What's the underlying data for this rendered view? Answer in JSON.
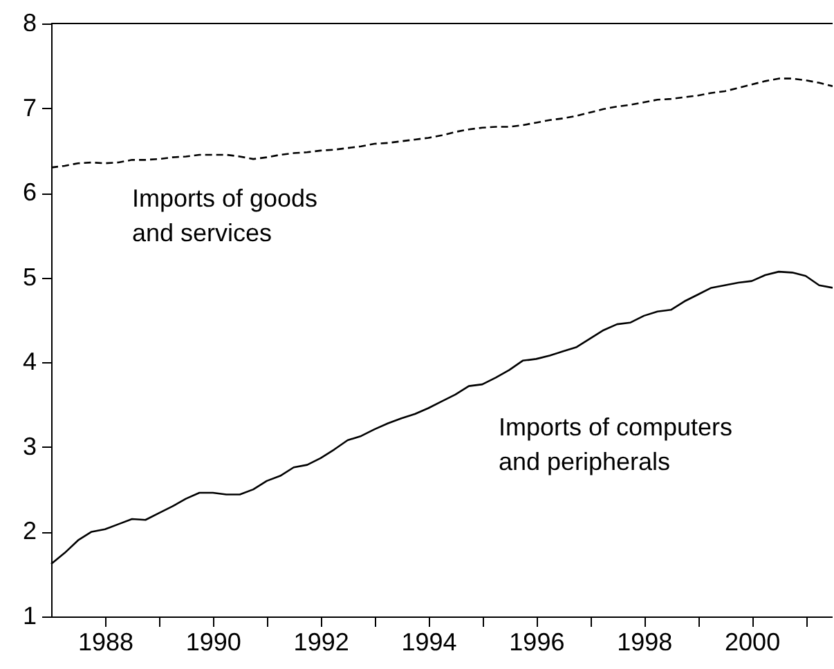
{
  "chart_data": {
    "type": "line",
    "x": [
      1987,
      1987.25,
      1987.5,
      1987.75,
      1988,
      1988.25,
      1988.5,
      1988.75,
      1989,
      1989.25,
      1989.5,
      1989.75,
      1990,
      1990.25,
      1990.5,
      1990.75,
      1991,
      1991.25,
      1991.5,
      1991.75,
      1992,
      1992.25,
      1992.5,
      1992.75,
      1993,
      1993.25,
      1993.5,
      1993.75,
      1994,
      1994.25,
      1994.5,
      1994.75,
      1995,
      1995.25,
      1995.5,
      1995.75,
      1996,
      1996.25,
      1996.5,
      1996.75,
      1997,
      1997.25,
      1997.5,
      1997.75,
      1998,
      1998.25,
      1998.5,
      1998.75,
      1999,
      1999.25,
      1999.5,
      1999.75,
      2000,
      2000.25,
      2000.5,
      2000.75,
      2001,
      2001.25,
      2001.5
    ],
    "series": [
      {
        "name": "Imports of goods and services",
        "color": "#000000",
        "line_style": "dashed",
        "values": [
          6.3,
          6.32,
          6.35,
          6.36,
          6.35,
          6.36,
          6.39,
          6.39,
          6.4,
          6.42,
          6.43,
          6.45,
          6.45,
          6.45,
          6.43,
          6.4,
          6.42,
          6.45,
          6.47,
          6.48,
          6.5,
          6.51,
          6.53,
          6.55,
          6.58,
          6.59,
          6.61,
          6.63,
          6.65,
          6.68,
          6.72,
          6.75,
          6.77,
          6.78,
          6.78,
          6.8,
          6.83,
          6.86,
          6.88,
          6.91,
          6.95,
          6.99,
          7.02,
          7.04,
          7.07,
          7.1,
          7.11,
          7.13,
          7.15,
          7.18,
          7.2,
          7.24,
          7.28,
          7.32,
          7.35,
          7.35,
          7.33,
          7.3,
          7.26
        ]
      },
      {
        "name": "Imports of computers and peripherals",
        "color": "#000000",
        "line_style": "solid",
        "values": [
          1.62,
          1.75,
          1.9,
          2.0,
          2.03,
          2.09,
          2.15,
          2.14,
          2.22,
          2.3,
          2.39,
          2.46,
          2.46,
          2.44,
          2.44,
          2.5,
          2.6,
          2.66,
          2.76,
          2.79,
          2.87,
          2.97,
          3.08,
          3.13,
          3.21,
          3.28,
          3.34,
          3.39,
          3.46,
          3.54,
          3.62,
          3.72,
          3.74,
          3.82,
          3.91,
          4.02,
          4.04,
          4.08,
          4.13,
          4.18,
          4.28,
          4.38,
          4.45,
          4.47,
          4.55,
          4.6,
          4.62,
          4.72,
          4.8,
          4.88,
          4.91,
          4.94,
          4.96,
          5.03,
          5.07,
          5.06,
          5.02,
          4.91,
          4.88
        ]
      }
    ],
    "xlim": [
      1987,
      2001.5
    ],
    "ylim": [
      1,
      8
    ],
    "xticks": [
      {
        "value": 1988,
        "label": "1988"
      },
      {
        "value": 1989,
        "label": null
      },
      {
        "value": 1990,
        "label": "1990"
      },
      {
        "value": 1991,
        "label": null
      },
      {
        "value": 1992,
        "label": "1992"
      },
      {
        "value": 1993,
        "label": null
      },
      {
        "value": 1994,
        "label": "1994"
      },
      {
        "value": 1995,
        "label": null
      },
      {
        "value": 1996,
        "label": "1996"
      },
      {
        "value": 1997,
        "label": null
      },
      {
        "value": 1998,
        "label": "1998"
      },
      {
        "value": 1999,
        "label": null
      },
      {
        "value": 2000,
        "label": "2000"
      },
      {
        "value": 2001,
        "label": null
      }
    ],
    "yticks": [
      1,
      2,
      3,
      4,
      5,
      6,
      7,
      8
    ],
    "grid": false,
    "marker": "none"
  }
}
